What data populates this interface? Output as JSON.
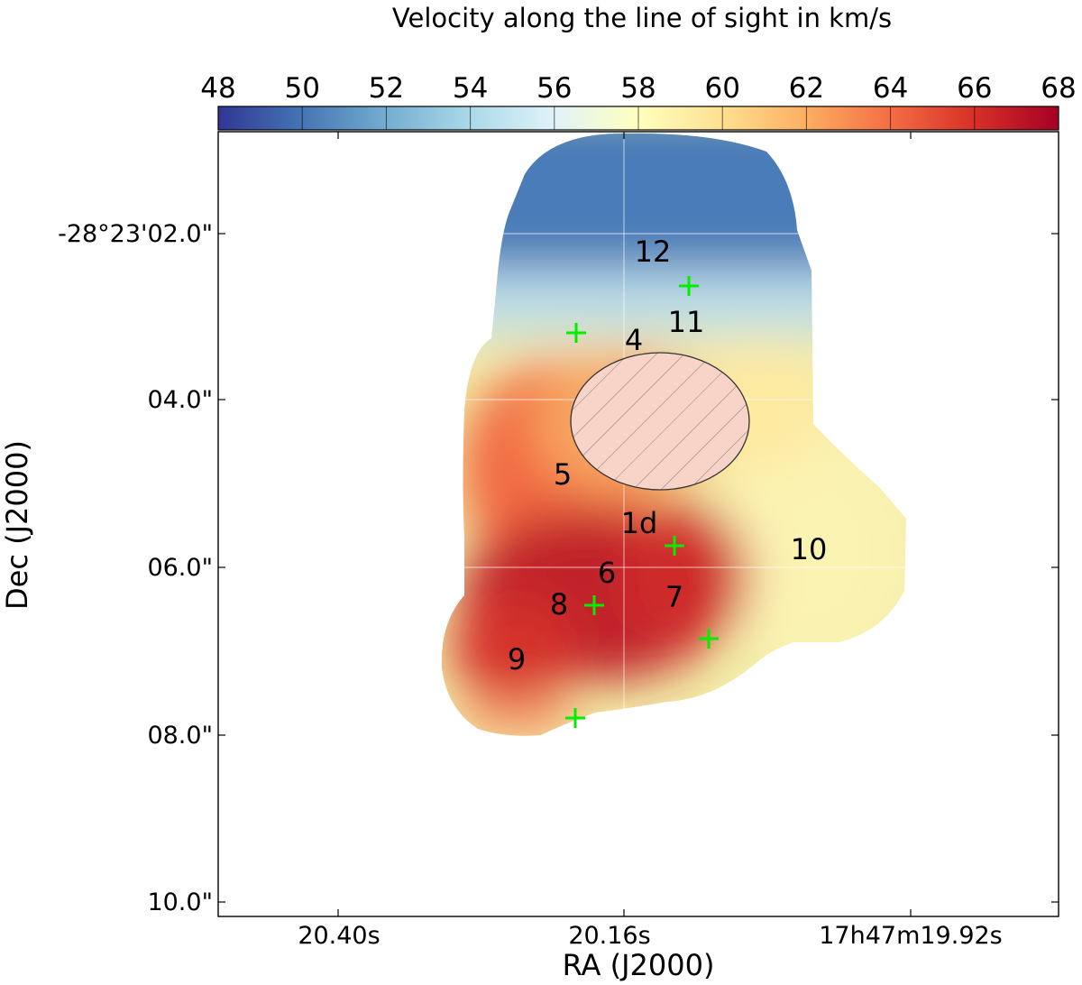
{
  "chart_data": {
    "type": "heatmap",
    "title": "Velocity along the line of sight in km/s",
    "xlabel": "RA (J2000)",
    "ylabel": "Dec (J2000)",
    "colorbar": {
      "ticks": [
        "48",
        "50",
        "52",
        "54",
        "56",
        "58",
        "60",
        "62",
        "64",
        "66",
        "68"
      ],
      "range": [
        48,
        68
      ],
      "colormap": "RdYlBu_r",
      "stops": [
        "#313695",
        "#4575b4",
        "#74add1",
        "#abd9e9",
        "#e0f3f8",
        "#ffffbf",
        "#fee090",
        "#fdae61",
        "#f46d43",
        "#d73027",
        "#a50026"
      ]
    },
    "x_ticks": [
      "20.40s",
      "20.16s",
      "17h47m19.92s"
    ],
    "y_ticks": [
      "-28°23'02.0\"",
      "04.0\"",
      "06.0\"",
      "08.0\"",
      "10.0\""
    ],
    "grid": true,
    "regions": [
      {
        "label": "12",
        "velocity": 51
      },
      {
        "label": "11",
        "velocity": 55
      },
      {
        "label": "4",
        "velocity": 58.5
      },
      {
        "label": "5",
        "velocity": 64
      },
      {
        "label": "1d",
        "velocity": 64.5
      },
      {
        "label": "6",
        "velocity": 67
      },
      {
        "label": "7",
        "velocity": 66.5
      },
      {
        "label": "8",
        "velocity": 67
      },
      {
        "label": "9",
        "velocity": 66
      },
      {
        "label": "10",
        "velocity": 59
      }
    ],
    "markers": {
      "symbol": "+",
      "color": "#00ff00",
      "count": 6
    },
    "hatched_ellipse": {
      "fill": "#f7d3c8",
      "hatch": true
    }
  }
}
